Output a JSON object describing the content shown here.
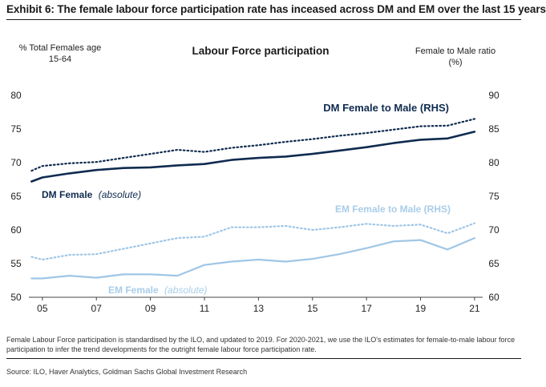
{
  "exhibit_title": "Exhibit 6: The female labour force participation rate has inceased across DM and EM over the last 15 years",
  "footnote": "Female Labour Force participation is standardised by the ILO, and updated to 2019. For 2020-2021, we use the ILO's estimates for female-to-male labour force participation to infer the trend developments for the outright female labour force participation rate.",
  "source": "Source: ILO, Haver Analytics, Goldman Sachs Global Investment Research",
  "colors": {
    "dm": "#0f2b4f",
    "em": "#9fc6e6"
  },
  "chart_data": {
    "type": "line",
    "title": "Labour Force participation",
    "ylabel_left_line1": "% Total Females age",
    "ylabel_left_line2": "15-64",
    "ylabel_right_line1": "Female to Male ratio",
    "ylabel_right_line2": "(%)",
    "ylim_left": [
      50,
      80
    ],
    "ylim_right": [
      60,
      90
    ],
    "xlim": [
      2004.5,
      2021.3
    ],
    "x_ticks": [
      2005,
      2007,
      2009,
      2011,
      2013,
      2015,
      2017,
      2019,
      2021
    ],
    "x_tick_labels": [
      "05",
      "07",
      "09",
      "11",
      "13",
      "15",
      "17",
      "19",
      "21"
    ],
    "y_ticks_left": [
      "80",
      "75",
      "70",
      "65",
      "60",
      "55",
      "50"
    ],
    "y_ticks_right": [
      "90",
      "85",
      "80",
      "75",
      "70",
      "65",
      "60"
    ],
    "grid": false,
    "x": [
      2004.6,
      2005,
      2006,
      2007,
      2008,
      2009,
      2010,
      2011,
      2012,
      2013,
      2014,
      2015,
      2016,
      2017,
      2018,
      2019,
      2020,
      2021
    ],
    "series": [
      {
        "name": "DM Female",
        "name_suffix": "(absolute)",
        "axis": "left",
        "style": "solid",
        "color_key": "dm",
        "values": [
          67.2,
          67.8,
          68.4,
          68.9,
          69.2,
          69.3,
          69.6,
          69.8,
          70.4,
          70.7,
          70.9,
          71.3,
          71.8,
          72.3,
          72.9,
          73.4,
          73.6,
          74.6
        ]
      },
      {
        "name": "DM Female to Male (RHS)",
        "axis": "right",
        "style": "dotted",
        "color_key": "dm",
        "values": [
          78.8,
          79.5,
          79.9,
          80.1,
          80.7,
          81.3,
          81.9,
          81.6,
          82.2,
          82.6,
          83.1,
          83.5,
          84.0,
          84.4,
          84.9,
          85.4,
          85.5,
          86.5
        ]
      },
      {
        "name": "EM Female",
        "name_suffix": "(absolute)",
        "axis": "left",
        "style": "solid",
        "color_key": "em",
        "values": [
          52.8,
          52.8,
          53.2,
          52.9,
          53.4,
          53.4,
          53.2,
          54.8,
          55.3,
          55.6,
          55.3,
          55.7,
          56.4,
          57.3,
          58.3,
          58.5,
          57.1,
          58.8
        ]
      },
      {
        "name": "EM Female to Male (RHS)",
        "axis": "right",
        "style": "dotted",
        "color_key": "em",
        "values": [
          66.0,
          65.6,
          66.3,
          66.4,
          67.2,
          68.0,
          68.8,
          69.0,
          70.4,
          70.4,
          70.6,
          70.0,
          70.4,
          70.9,
          70.6,
          70.8,
          69.5,
          71.0
        ]
      }
    ],
    "labels": [
      {
        "series": 0,
        "label_anchor": "dm-female"
      },
      {
        "series": 1,
        "label_anchor": "dm-ratio"
      },
      {
        "series": 2,
        "label_anchor": "em-female"
      },
      {
        "series": 3,
        "label_anchor": "em-ratio"
      }
    ]
  }
}
